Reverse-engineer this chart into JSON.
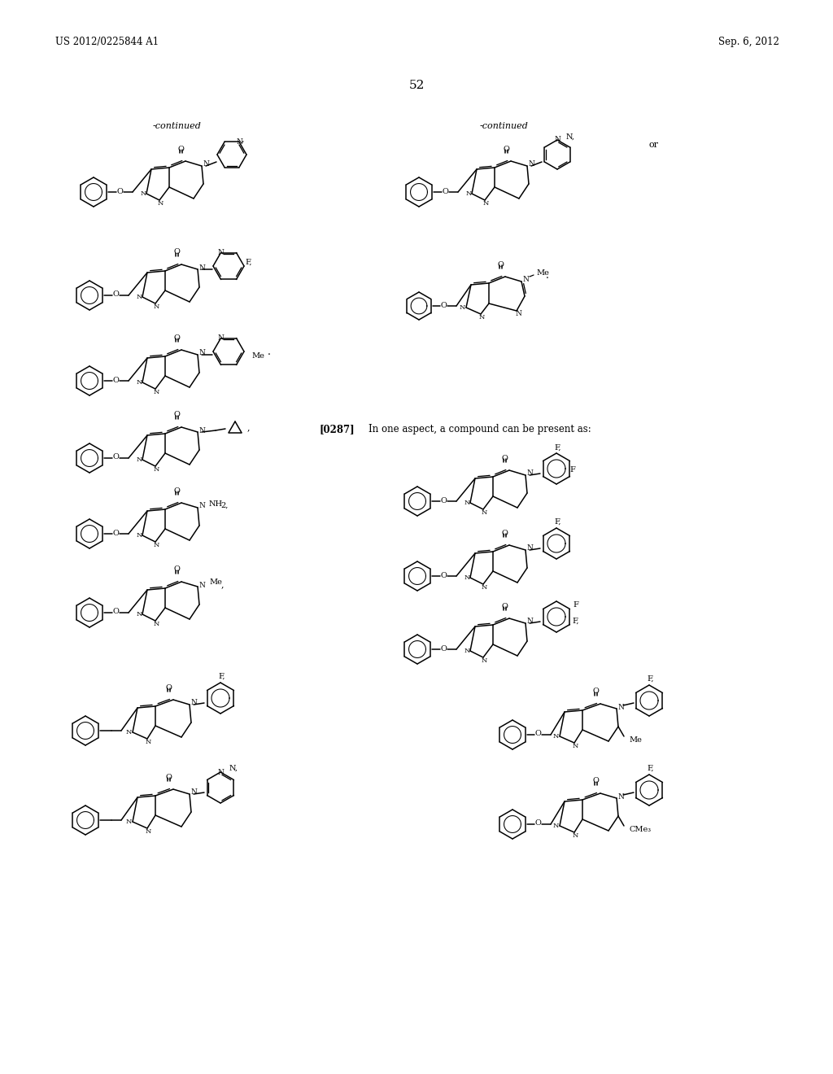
{
  "header_left": "US 2012/0225844 A1",
  "header_right": "Sep. 6, 2012",
  "page_number": "52",
  "continued_left": "-continued",
  "continued_right": "-continued",
  "or_text": "or",
  "para_ref": "[0287]",
  "para_text": "In one aspect, a compound can be present as:",
  "bg": "#ffffff",
  "fg": "#000000"
}
